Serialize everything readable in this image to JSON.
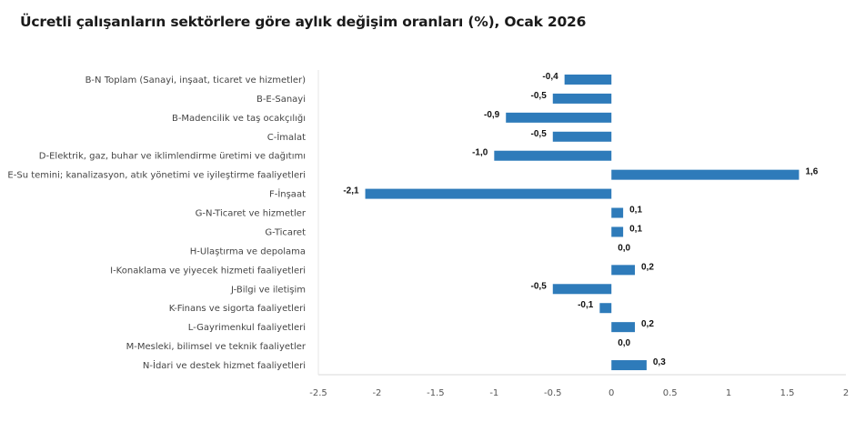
{
  "chart_data": {
    "type": "bar",
    "orientation": "horizontal",
    "title": "Ücretli çalışanların sektörlere göre aylık değişim oranları (%), Ocak 2026",
    "xlabel": "",
    "ylabel": "",
    "categories": [
      "B-N Toplam (Sanayi, inşaat, ticaret ve hizmetler)",
      "B-E-Sanayi",
      "B-Madencilik ve taş ocakçılığı",
      "C-İmalat",
      "D-Elektrik, gaz, buhar ve iklimlendirme üretimi ve dağıtımı",
      "E-Su temini; kanalizasyon, atık yönetimi ve iyileştirme faaliyetleri",
      "F-İnşaat",
      "G-N-Ticaret ve hizmetler",
      "G-Ticaret",
      "H-Ulaştırma ve depolama",
      "I-Konaklama ve yiyecek hizmeti faaliyetleri",
      "J-Bilgi ve iletişim",
      "K-Finans ve sigorta faaliyetleri",
      "L-Gayrimenkul faaliyetleri",
      "M-Mesleki, bilimsel ve teknik faaliyetler",
      "N-İdari ve destek hizmet faaliyetleri"
    ],
    "values": [
      -0.4,
      -0.5,
      -0.9,
      -0.5,
      -1.0,
      1.6,
      -2.1,
      0.1,
      0.1,
      0.0,
      0.2,
      -0.5,
      -0.1,
      0.2,
      0.0,
      0.3
    ],
    "data_labels": [
      "-0,4",
      "-0,5",
      "-0,9",
      "-0,5",
      "-1,0",
      "1,6",
      "-2,1",
      "0,1",
      "0,1",
      "0,0",
      "0,2",
      "-0,5",
      "-0,1",
      "0,2",
      "0,0",
      "0,3"
    ],
    "xlim": [
      -2.5,
      2
    ],
    "xticks": [
      -2.5,
      -2,
      -1.5,
      -1,
      -0.5,
      0,
      0.5,
      1,
      1.5,
      2
    ],
    "xtick_labels": [
      "-2.5",
      "-2",
      "-1.5",
      "-1",
      "-0.5",
      "0",
      "0.5",
      "1",
      "1.5",
      "2"
    ],
    "grid": false,
    "legend": "none",
    "colors": {
      "bar": "#2e7bba",
      "axis_line": "#e6e6e6"
    }
  }
}
